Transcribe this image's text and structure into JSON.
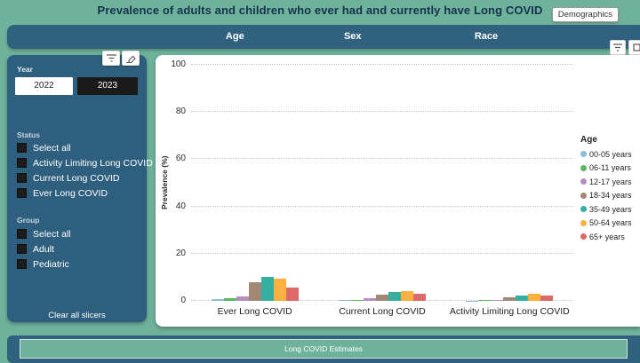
{
  "page": {
    "title": "Prevalence of adults and children who ever had and currently have Long COVID",
    "tooltip": "Demographics"
  },
  "navbar": {
    "tabs": [
      {
        "label": "Age"
      },
      {
        "label": "Sex"
      },
      {
        "label": "Race"
      }
    ]
  },
  "sidebar": {
    "year": {
      "label": "Year",
      "options": [
        {
          "label": "2022",
          "selected": true
        },
        {
          "label": "2023",
          "selected": false
        }
      ]
    },
    "status": {
      "label": "Status",
      "options": [
        "Select all",
        "Activity Limiting Long COVID",
        "Current Long COVID",
        "Ever Long COVID"
      ]
    },
    "group": {
      "label": "Group",
      "options": [
        "Select all",
        "Adult",
        "Pediatric"
      ]
    },
    "clear_button": "Clear all slicers"
  },
  "chart_data": {
    "type": "bar",
    "title": "",
    "xlabel": "",
    "ylabel": "Prevalence (%)",
    "ylim": [
      0,
      100
    ],
    "yticks": [
      0,
      20,
      40,
      60,
      80,
      100
    ],
    "grid": "horizontal-dotted",
    "legend_title": "Age",
    "legend_position": "right",
    "categories": [
      "Ever Long COVID",
      "Current Long COVID",
      "Activity Limiting Long COVID"
    ],
    "series": [
      {
        "name": "00-05 years",
        "color": "#8CBEDB",
        "values": [
          0.6,
          0.3,
          0.1
        ]
      },
      {
        "name": "06-11 years",
        "color": "#5BB75B",
        "values": [
          1.0,
          0.5,
          0.2
        ]
      },
      {
        "name": "12-17 years",
        "color": "#B48EC0",
        "values": [
          1.9,
          1.0,
          0.4
        ]
      },
      {
        "name": "18-34  years",
        "color": "#A08875",
        "values": [
          7.8,
          2.6,
          1.4
        ]
      },
      {
        "name": "35-49  years",
        "color": "#35B0A0",
        "values": [
          10.0,
          3.9,
          2.3
        ]
      },
      {
        "name": "50-64  years",
        "color": "#FBB040",
        "values": [
          9.3,
          4.2,
          3.0
        ]
      },
      {
        "name": "65+  years",
        "color": "#DC6A66",
        "values": [
          5.7,
          3.0,
          2.2
        ]
      }
    ]
  },
  "footer": {
    "button": "Long COVID Estimates"
  },
  "colors": {
    "page_bg": "#6FB29B",
    "panel_blue": "#30617F",
    "sidebar_blue": "#2E5F7E",
    "year_selected_bg": "#FFFFFF",
    "year_unselected_bg": "#1A1A1A"
  }
}
